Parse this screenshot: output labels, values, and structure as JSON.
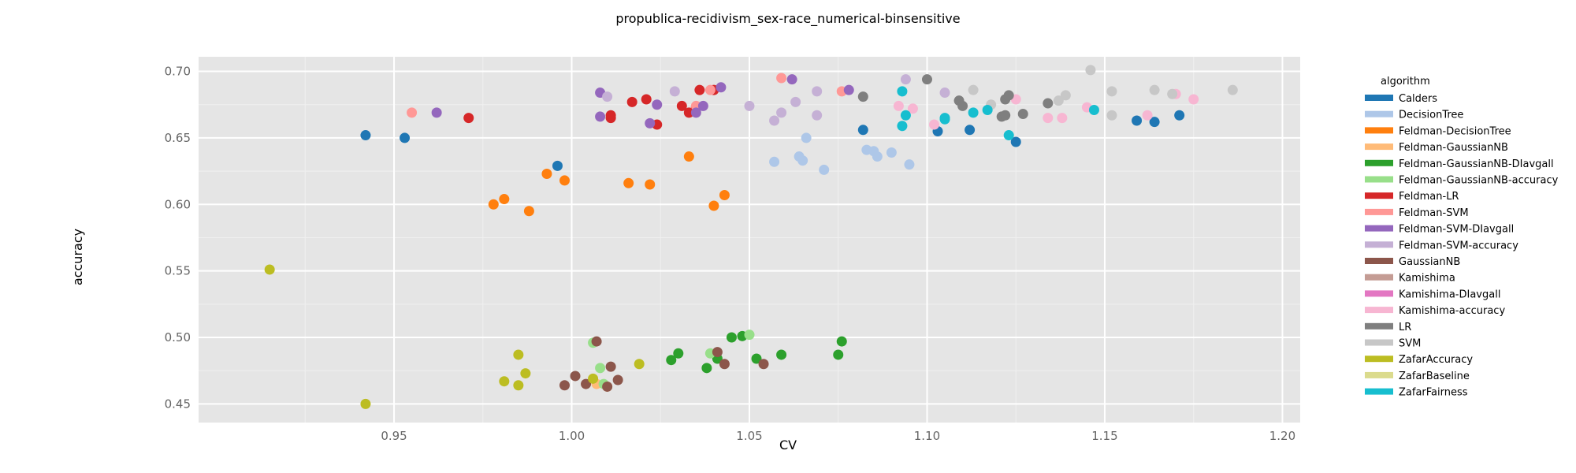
{
  "chart_data": {
    "type": "scatter",
    "title": "propublica-recidivism_sex-race_numerical-binsensitive",
    "xlabel": "CV",
    "ylabel": "accuracy",
    "xlim": [
      0.895,
      1.205
    ],
    "ylim": [
      0.436,
      0.711
    ],
    "xticks": [
      "0.95",
      "1.00",
      "1.05",
      "1.10",
      "1.15",
      "1.20"
    ],
    "yticks": [
      "0.45",
      "0.50",
      "0.55",
      "0.60",
      "0.65",
      "0.70"
    ],
    "grid": true,
    "legend_title": "algorithm",
    "legend_position": "right",
    "series": [
      {
        "name": "Calders",
        "color": "#1f77b4",
        "points": [
          [
            0.942,
            0.652
          ],
          [
            0.953,
            0.65
          ],
          [
            0.996,
            0.629
          ],
          [
            1.082,
            0.656
          ],
          [
            1.103,
            0.655
          ],
          [
            1.112,
            0.656
          ],
          [
            1.125,
            0.647
          ],
          [
            1.159,
            0.663
          ],
          [
            1.164,
            0.662
          ],
          [
            1.171,
            0.667
          ]
        ]
      },
      {
        "name": "DecisionTree",
        "color": "#aec7e8",
        "points": [
          [
            1.057,
            0.632
          ],
          [
            1.064,
            0.636
          ],
          [
            1.065,
            0.633
          ],
          [
            1.066,
            0.65
          ],
          [
            1.071,
            0.626
          ],
          [
            1.083,
            0.641
          ],
          [
            1.085,
            0.64
          ],
          [
            1.086,
            0.636
          ],
          [
            1.09,
            0.639
          ],
          [
            1.095,
            0.63
          ]
        ]
      },
      {
        "name": "Feldman-DecisionTree",
        "color": "#ff7f0e",
        "points": [
          [
            0.978,
            0.6
          ],
          [
            0.981,
            0.604
          ],
          [
            0.988,
            0.595
          ],
          [
            0.993,
            0.623
          ],
          [
            0.998,
            0.618
          ],
          [
            1.016,
            0.616
          ],
          [
            1.022,
            0.615
          ],
          [
            1.033,
            0.636
          ],
          [
            1.04,
            0.599
          ],
          [
            1.043,
            0.607
          ]
        ]
      },
      {
        "name": "Feldman-GaussianNB",
        "color": "#ffbb78",
        "points": [
          [
            1.007,
            0.465
          ],
          [
            1.01,
            0.463
          ]
        ]
      },
      {
        "name": "Feldman-GaussianNB-DIavgall",
        "color": "#2ca02c",
        "points": [
          [
            1.028,
            0.483
          ],
          [
            1.03,
            0.488
          ],
          [
            1.038,
            0.477
          ],
          [
            1.041,
            0.484
          ],
          [
            1.045,
            0.5
          ],
          [
            1.048,
            0.501
          ],
          [
            1.052,
            0.484
          ],
          [
            1.059,
            0.487
          ],
          [
            1.075,
            0.487
          ],
          [
            1.076,
            0.497
          ]
        ]
      },
      {
        "name": "Feldman-GaussianNB-accuracy",
        "color": "#98df8a",
        "points": [
          [
            1.006,
            0.496
          ],
          [
            1.008,
            0.477
          ],
          [
            1.009,
            0.465
          ],
          [
            1.039,
            0.488
          ],
          [
            1.05,
            0.502
          ]
        ]
      },
      {
        "name": "Feldman-LR",
        "color": "#d62728",
        "points": [
          [
            0.971,
            0.665
          ],
          [
            1.011,
            0.665
          ],
          [
            1.011,
            0.667
          ],
          [
            1.017,
            0.677
          ],
          [
            1.021,
            0.679
          ],
          [
            1.024,
            0.66
          ],
          [
            1.031,
            0.674
          ],
          [
            1.033,
            0.669
          ],
          [
            1.035,
            0.673
          ],
          [
            1.036,
            0.686
          ],
          [
            1.04,
            0.686
          ]
        ]
      },
      {
        "name": "Feldman-SVM",
        "color": "#ff9896",
        "points": [
          [
            0.955,
            0.669
          ],
          [
            1.035,
            0.674
          ],
          [
            1.039,
            0.686
          ],
          [
            1.059,
            0.695
          ],
          [
            1.076,
            0.685
          ]
        ]
      },
      {
        "name": "Feldman-SVM-DIavgall",
        "color": "#9467bd",
        "points": [
          [
            0.962,
            0.669
          ],
          [
            1.008,
            0.684
          ],
          [
            1.008,
            0.666
          ],
          [
            1.022,
            0.661
          ],
          [
            1.024,
            0.675
          ],
          [
            1.035,
            0.669
          ],
          [
            1.037,
            0.674
          ],
          [
            1.042,
            0.688
          ],
          [
            1.062,
            0.694
          ],
          [
            1.078,
            0.686
          ]
        ]
      },
      {
        "name": "Feldman-SVM-accuracy",
        "color": "#c5b0d5",
        "points": [
          [
            1.01,
            0.681
          ],
          [
            1.029,
            0.685
          ],
          [
            1.05,
            0.674
          ],
          [
            1.057,
            0.663
          ],
          [
            1.059,
            0.669
          ],
          [
            1.063,
            0.677
          ],
          [
            1.069,
            0.685
          ],
          [
            1.069,
            0.667
          ],
          [
            1.094,
            0.694
          ],
          [
            1.105,
            0.684
          ]
        ]
      },
      {
        "name": "GaussianNB",
        "color": "#8c564b",
        "points": [
          [
            0.998,
            0.464
          ],
          [
            1.001,
            0.471
          ],
          [
            1.004,
            0.465
          ],
          [
            1.007,
            0.497
          ],
          [
            1.01,
            0.463
          ],
          [
            1.011,
            0.478
          ],
          [
            1.013,
            0.468
          ],
          [
            1.041,
            0.489
          ],
          [
            1.043,
            0.48
          ],
          [
            1.054,
            0.48
          ]
        ]
      },
      {
        "name": "Kamishima",
        "color": "#c49c94",
        "points": []
      },
      {
        "name": "Kamishima-DIavgall",
        "color": "#e377c2",
        "points": []
      },
      {
        "name": "Kamishima-accuracy",
        "color": "#f7b6d2",
        "points": [
          [
            1.092,
            0.674
          ],
          [
            1.096,
            0.672
          ],
          [
            1.102,
            0.66
          ],
          [
            1.125,
            0.679
          ],
          [
            1.134,
            0.665
          ],
          [
            1.138,
            0.665
          ],
          [
            1.145,
            0.673
          ],
          [
            1.162,
            0.667
          ],
          [
            1.17,
            0.683
          ],
          [
            1.175,
            0.679
          ]
        ]
      },
      {
        "name": "LR",
        "color": "#7f7f7f",
        "points": [
          [
            1.082,
            0.681
          ],
          [
            1.1,
            0.694
          ],
          [
            1.109,
            0.678
          ],
          [
            1.11,
            0.674
          ],
          [
            1.121,
            0.666
          ],
          [
            1.122,
            0.667
          ],
          [
            1.122,
            0.679
          ],
          [
            1.123,
            0.682
          ],
          [
            1.127,
            0.668
          ],
          [
            1.134,
            0.676
          ]
        ]
      },
      {
        "name": "SVM",
        "color": "#c7c7c7",
        "points": [
          [
            1.113,
            0.686
          ],
          [
            1.118,
            0.675
          ],
          [
            1.137,
            0.678
          ],
          [
            1.139,
            0.682
          ],
          [
            1.146,
            0.701
          ],
          [
            1.152,
            0.685
          ],
          [
            1.152,
            0.667
          ],
          [
            1.164,
            0.686
          ],
          [
            1.169,
            0.683
          ],
          [
            1.186,
            0.686
          ]
        ]
      },
      {
        "name": "ZafarAccuracy",
        "color": "#bcbd22",
        "points": [
          [
            0.915,
            0.551
          ],
          [
            0.942,
            0.45
          ],
          [
            0.981,
            0.467
          ],
          [
            0.985,
            0.487
          ],
          [
            0.985,
            0.464
          ],
          [
            0.987,
            0.473
          ],
          [
            1.006,
            0.469
          ],
          [
            1.019,
            0.48
          ]
        ]
      },
      {
        "name": "ZafarBaseline",
        "color": "#dbdb8d",
        "points": []
      },
      {
        "name": "ZafarFairness",
        "color": "#17becf",
        "points": [
          [
            1.093,
            0.659
          ],
          [
            1.093,
            0.685
          ],
          [
            1.094,
            0.667
          ],
          [
            1.105,
            0.665
          ],
          [
            1.105,
            0.664
          ],
          [
            1.113,
            0.669
          ],
          [
            1.117,
            0.671
          ],
          [
            1.123,
            0.652
          ],
          [
            1.147,
            0.671
          ]
        ]
      }
    ]
  }
}
